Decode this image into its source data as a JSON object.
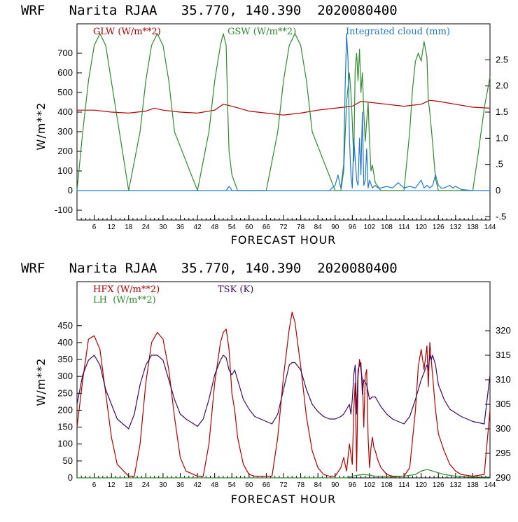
{
  "chart_data": [
    {
      "type": "line",
      "title": "WRF   Narita RJAA   35.770, 140.390  2020080400",
      "xlabel": "FORECAST HOUR",
      "ylabel": "W/m**2",
      "xlim": [
        0,
        144
      ],
      "ylim": [
        -150,
        850
      ],
      "y2lim": [
        -0.5625,
        3.1875
      ],
      "xticks": [
        "6",
        "12",
        "18",
        "24",
        "30",
        "36",
        "42",
        "48",
        "54",
        "60",
        "66",
        "72",
        "78",
        "84",
        "90",
        "96",
        "102",
        "108",
        "114",
        "120",
        "126",
        "132",
        "138",
        "144"
      ],
      "yticks": [
        "-100",
        "0",
        "100",
        "200",
        "300",
        "400",
        "500",
        "600",
        "700"
      ],
      "y2ticks": [
        "-.5",
        "0",
        ".5",
        "1.0",
        "1.5",
        "2.0",
        "2.5"
      ],
      "colors": {
        "GLW": "#b00000",
        "GSW": "#2e8b2e",
        "CLOUD": "#1f77d0"
      },
      "series": [
        {
          "name": "GLW (W/m**2)",
          "axis": "left",
          "x": [
            0,
            6,
            12,
            18,
            24,
            27,
            30,
            36,
            42,
            48,
            51,
            54,
            60,
            66,
            72,
            78,
            84,
            90,
            96,
            99,
            102,
            108,
            114,
            120,
            123,
            126,
            132,
            138,
            144
          ],
          "y": [
            410,
            410,
            400,
            395,
            405,
            420,
            410,
            400,
            395,
            410,
            440,
            430,
            405,
            395,
            385,
            395,
            410,
            420,
            430,
            455,
            450,
            440,
            430,
            440,
            460,
            455,
            440,
            425,
            420
          ]
        },
        {
          "name": "GSW (W/m**2)",
          "axis": "left",
          "x": [
            0,
            2,
            4,
            6,
            8,
            10,
            18,
            22,
            24,
            26,
            28,
            30,
            32,
            34,
            42,
            46,
            48,
            50,
            51,
            52,
            52.5,
            53,
            54,
            56,
            58,
            66,
            70,
            72,
            74,
            76,
            78,
            80,
            82,
            90,
            92,
            93,
            94,
            95,
            95.5,
            96,
            96.5,
            97,
            97.5,
            98,
            98.5,
            99,
            99.5,
            100,
            100.5,
            101,
            101.5,
            102,
            102.5,
            103,
            104,
            106,
            114,
            116,
            117,
            118,
            119,
            120,
            121,
            121.5,
            122,
            122.5,
            123,
            124,
            124.5,
            125,
            126,
            128,
            130,
            138,
            140,
            142,
            144
          ],
          "y": [
            0,
            300,
            560,
            740,
            800,
            740,
            0,
            300,
            560,
            740,
            800,
            740,
            560,
            300,
            0,
            300,
            560,
            740,
            800,
            740,
            450,
            200,
            80,
            0,
            0,
            0,
            300,
            560,
            740,
            800,
            740,
            560,
            300,
            0,
            0,
            100,
            450,
            600,
            500,
            350,
            150,
            620,
            700,
            560,
            720,
            500,
            600,
            400,
            250,
            350,
            450,
            250,
            100,
            130,
            40,
            0,
            0,
            300,
            520,
            660,
            700,
            660,
            760,
            720,
            680,
            460,
            400,
            240,
            150,
            60,
            0,
            0,
            0,
            0,
            200,
            420,
            580
          ]
        },
        {
          "name": "Integrated cloud (mm)",
          "axis": "right",
          "x": [
            0,
            52,
            52.5,
            53,
            53.5,
            54,
            88,
            89,
            90,
            91,
            92,
            93,
            93.5,
            94,
            94.5,
            95,
            95.5,
            96,
            96.5,
            97,
            97.5,
            98,
            98.5,
            99,
            99.5,
            100,
            100.5,
            101,
            101.5,
            102,
            103,
            104,
            105,
            106,
            108,
            110,
            112,
            114,
            116,
            118,
            120,
            121,
            122,
            123,
            124,
            125,
            126,
            127,
            128,
            130,
            131,
            132,
            133,
            134,
            138,
            144
          ],
          "y": [
            0,
            0,
            0.04,
            0.08,
            0.05,
            0,
            0,
            0.05,
            0.1,
            0.3,
            0.05,
            0.5,
            2.0,
            3.0,
            2.5,
            1.0,
            0.3,
            0.05,
            1.0,
            0.6,
            0.2,
            0.1,
            1.0,
            0.3,
            1.5,
            0.1,
            0.2,
            0.8,
            0.05,
            0.2,
            0.05,
            0.1,
            0.05,
            0.05,
            0.08,
            0.05,
            0.15,
            0.05,
            0.08,
            0.05,
            0.2,
            0.05,
            0.1,
            0.05,
            0.1,
            0.3,
            0.1,
            0.05,
            0.05,
            0.1,
            0.05,
            0.08,
            0.05,
            0.02,
            0,
            0
          ]
        }
      ]
    },
    {
      "type": "line",
      "title": "WRF   Narita RJAA   35.770, 140.390  2020080400",
      "xlabel": "FORECAST HOUR",
      "ylabel": "W/m**2",
      "xlim": [
        0,
        144
      ],
      "ylim": [
        0,
        580
      ],
      "y2lim": [
        290,
        330
      ],
      "xticks": [
        "6",
        "12",
        "18",
        "24",
        "30",
        "36",
        "42",
        "48",
        "54",
        "60",
        "66",
        "72",
        "78",
        "84",
        "90",
        "96",
        "102",
        "108",
        "114",
        "120",
        "126",
        "132",
        "138",
        "144"
      ],
      "yticks": [
        "0",
        "50",
        "100",
        "150",
        "200",
        "250",
        "300",
        "350",
        "400",
        "450"
      ],
      "y2ticks": [
        "290",
        "295",
        "300",
        "305",
        "310",
        "315",
        "320"
      ],
      "colors": {
        "HFX": "#b00000",
        "LH": "#2e8b2e",
        "TSK": "#3d0a5c"
      },
      "series": [
        {
          "name": "HFX (W/m**2)",
          "axis": "left",
          "x": [
            0,
            2,
            4,
            6,
            8,
            10,
            12,
            14,
            18,
            20,
            22,
            24,
            26,
            28,
            30,
            32,
            34,
            36,
            38,
            42,
            44,
            46,
            48,
            50,
            51,
            52,
            53,
            54,
            55,
            56,
            58,
            60,
            62,
            66,
            68,
            70,
            72,
            74,
            75,
            76,
            78,
            80,
            82,
            84,
            86,
            88,
            90,
            92,
            93,
            94,
            95,
            96,
            96.5,
            97,
            97.5,
            98,
            98.5,
            99,
            99.5,
            100,
            100.5,
            101,
            101.5,
            102,
            102.5,
            103,
            103.5,
            104,
            105,
            106,
            107,
            108,
            110,
            114,
            116,
            118,
            119,
            120,
            121,
            122,
            122.5,
            123,
            124,
            125,
            126,
            128,
            130,
            132,
            134,
            138,
            142,
            144
          ],
          "y": [
            150,
            290,
            410,
            420,
            380,
            250,
            120,
            40,
            5,
            5,
            100,
            280,
            400,
            430,
            410,
            320,
            180,
            60,
            20,
            5,
            5,
            100,
            280,
            400,
            430,
            440,
            380,
            250,
            200,
            120,
            40,
            10,
            5,
            5,
            5,
            120,
            300,
            440,
            490,
            460,
            330,
            180,
            80,
            30,
            10,
            5,
            5,
            30,
            60,
            20,
            100,
            40,
            200,
            280,
            20,
            300,
            350,
            320,
            290,
            150,
            300,
            320,
            120,
            30,
            90,
            120,
            90,
            80,
            50,
            30,
            20,
            10,
            5,
            5,
            30,
            200,
            330,
            380,
            320,
            390,
            270,
            400,
            300,
            200,
            130,
            80,
            40,
            20,
            10,
            5,
            10,
            200
          ]
        },
        {
          "name": "LH  (W/m**2)",
          "axis": "left",
          "x": [
            0,
            94,
            96,
            98,
            100,
            102,
            104,
            110,
            114,
            118,
            120,
            122,
            124,
            126,
            128,
            132,
            136,
            140,
            144
          ],
          "y": [
            0,
            0,
            5,
            8,
            10,
            8,
            5,
            3,
            5,
            10,
            20,
            25,
            20,
            15,
            10,
            5,
            3,
            2,
            2
          ]
        },
        {
          "name": "TSK (K)",
          "axis": "right",
          "x": [
            0,
            2,
            4,
            6,
            8,
            10,
            14,
            18,
            20,
            22,
            24,
            26,
            28,
            30,
            32,
            34,
            36,
            38,
            42,
            44,
            46,
            48,
            50,
            51,
            52,
            53,
            54,
            55,
            56,
            58,
            60,
            62,
            66,
            68,
            70,
            72,
            74,
            75,
            76,
            78,
            80,
            82,
            84,
            86,
            88,
            90,
            92,
            93,
            94,
            95,
            95.5,
            96,
            96.5,
            97,
            97.5,
            98,
            98.5,
            99,
            99.5,
            100,
            101,
            102,
            103,
            104,
            106,
            108,
            110,
            114,
            116,
            118,
            120,
            122,
            122.5,
            123,
            123.5,
            124,
            125,
            126,
            128,
            130,
            134,
            138,
            142,
            144
          ],
          "y": [
            305,
            311,
            314,
            315,
            313,
            308,
            302,
            300,
            303,
            309,
            313,
            315,
            315,
            314,
            310,
            306,
            303,
            302,
            300.5,
            302,
            306,
            311,
            314,
            315,
            314.5,
            312,
            311,
            312,
            310,
            306,
            304,
            302.5,
            301.5,
            301,
            303,
            308,
            313,
            313.5,
            313.5,
            312,
            308,
            305,
            303.5,
            302.5,
            302,
            302,
            302.5,
            303,
            304,
            305,
            303,
            306,
            311,
            313,
            303,
            312,
            313,
            313.5,
            307,
            310,
            309,
            306,
            306.5,
            306.5,
            304.5,
            303,
            302,
            301,
            302.5,
            306,
            310,
            313,
            312,
            315,
            314,
            315,
            313,
            309,
            306,
            304,
            302.5,
            301.5,
            301,
            311
          ]
        }
      ]
    }
  ]
}
